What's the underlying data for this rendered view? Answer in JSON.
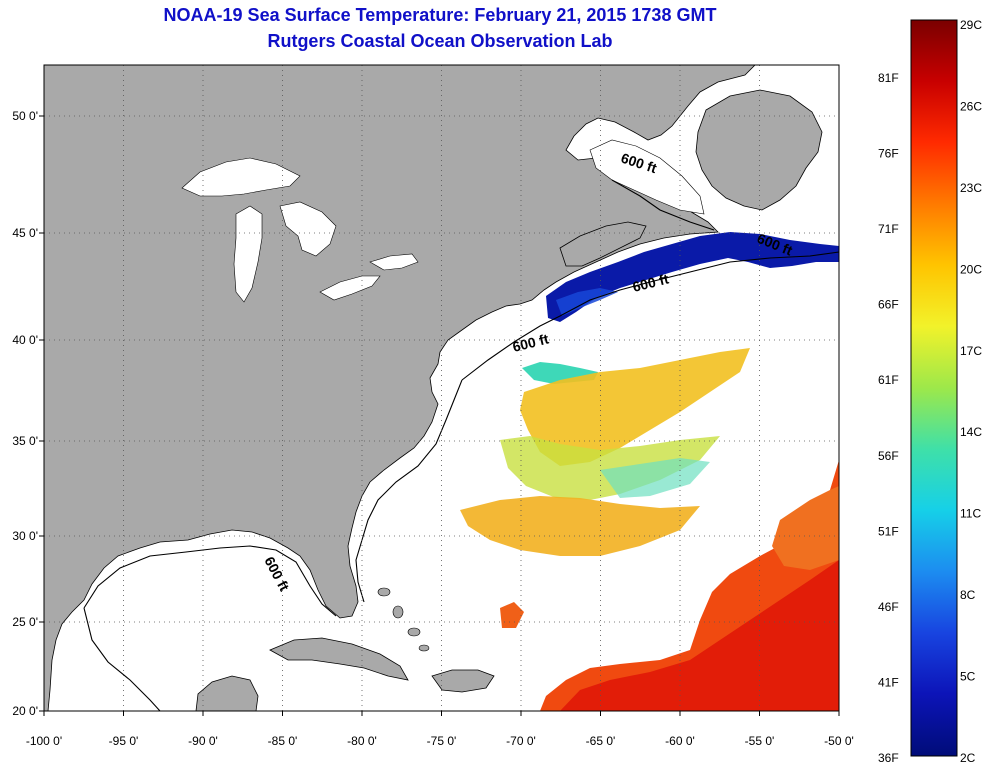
{
  "title": "NOAA-19 Sea Surface Temperature:  February 21, 2015 1738 GMT",
  "subtitle": "Rutgers Coastal Ocean Observation Lab",
  "map": {
    "lon_range": [
      -100,
      -50
    ],
    "lat_range": [
      20,
      52.5
    ],
    "lon_ticks": [
      "-100 0'",
      "-95 0'",
      "-90 0'",
      "-85 0'",
      "-80 0'",
      "-75 0'",
      "-70 0'",
      "-65 0'",
      "-60 0'",
      "-55 0'",
      "-50 0'"
    ],
    "lat_ticks": [
      "20 0'",
      "25 0'",
      "30 0'",
      "35 0'",
      "40 0'",
      "45 0'",
      "50 0'"
    ],
    "contour_label": "600 ft",
    "land_color": "#a9a9a9",
    "ocean_color": "#ffffff"
  },
  "colorbar": {
    "celsius_labels": [
      "29C",
      "26C",
      "23C",
      "20C",
      "17C",
      "14C",
      "11C",
      "8C",
      "5C",
      "2C"
    ],
    "fahrenheit_labels": [
      "81F",
      "76F",
      "71F",
      "66F",
      "61F",
      "56F",
      "51F",
      "46F",
      "41F",
      "36F"
    ],
    "colors": [
      "#7a0000",
      "#c80000",
      "#ff2a00",
      "#ff7a00",
      "#ffc400",
      "#f2f22a",
      "#9de84a",
      "#3fe0a8",
      "#16d0e8",
      "#1c8cf0",
      "#1844e0",
      "#0c14b8",
      "#000c78"
    ]
  }
}
